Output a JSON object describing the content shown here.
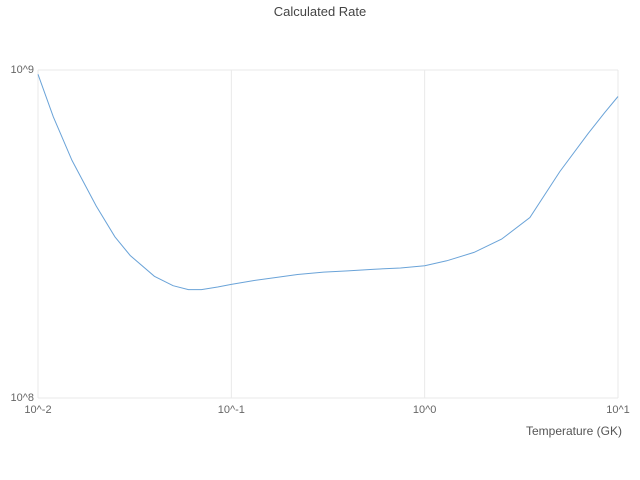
{
  "chart": {
    "title": "Calculated Rate",
    "xlabel": "Temperature (GK)",
    "line_color": "#6aa3d8",
    "grid_color": "#e9e9e9",
    "text_color": "#666666"
  },
  "chart_data": {
    "type": "line",
    "title": "Calculated Rate",
    "xlabel": "Temperature (GK)",
    "ylabel": "",
    "x_scale": "log",
    "y_scale": "log",
    "xlim": [
      0.01,
      10
    ],
    "ylim": [
      100000000.0,
      1000000000.0
    ],
    "x_ticks": [
      {
        "value": 0.01,
        "label": "10^-2"
      },
      {
        "value": 0.1,
        "label": "10^-1"
      },
      {
        "value": 1,
        "label": "10^0"
      },
      {
        "value": 10,
        "label": "10^1"
      }
    ],
    "y_ticks": [
      {
        "value": 100000000.0,
        "label": "10^8"
      },
      {
        "value": 1000000000.0,
        "label": "10^9"
      }
    ],
    "grid": true,
    "legend_position": "none",
    "series": [
      {
        "name": "Calculated Rate",
        "x": [
          0.01,
          0.012,
          0.015,
          0.02,
          0.025,
          0.03,
          0.04,
          0.05,
          0.06,
          0.07,
          0.085,
          0.1,
          0.13,
          0.17,
          0.22,
          0.3,
          0.4,
          0.55,
          0.75,
          1.0,
          1.3,
          1.8,
          2.5,
          3.5,
          5.0,
          7.0,
          8.5,
          10.0
        ],
        "y": [
          970000000.0,
          720000000.0,
          530000000.0,
          385000000.0,
          310000000.0,
          272000000.0,
          235000000.0,
          220000000.0,
          214000000.0,
          214000000.0,
          218000000.0,
          222000000.0,
          228000000.0,
          233000000.0,
          238000000.0,
          242000000.0,
          244000000.0,
          247000000.0,
          249000000.0,
          253000000.0,
          262000000.0,
          278000000.0,
          305000000.0,
          355000000.0,
          490000000.0,
          640000000.0,
          740000000.0,
          830000000.0
        ]
      }
    ]
  }
}
